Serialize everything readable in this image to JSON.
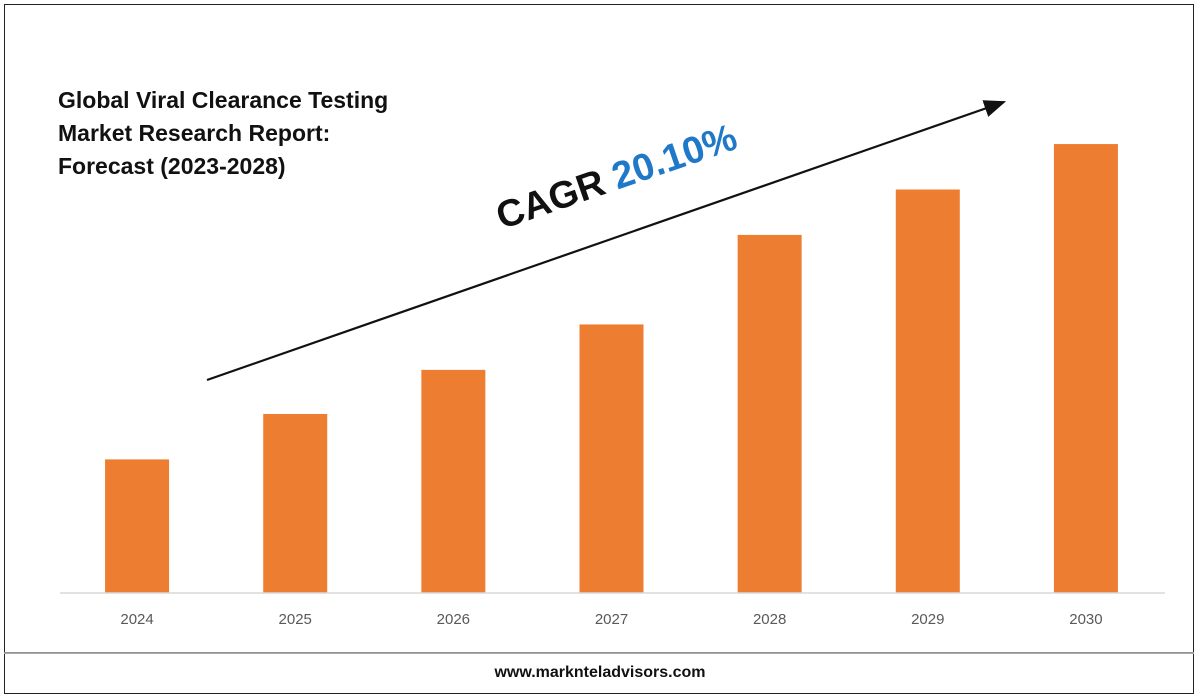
{
  "title_lines": [
    "Global Viral Clearance Testing",
    "Market Research Report:",
    "Forecast (2023-2028)"
  ],
  "cagr": {
    "label": "CAGR",
    "value": "20.10%"
  },
  "footer": "www.marknteladvisors.com",
  "colors": {
    "bar": "#ed7d31",
    "cagr_value": "#1f78c8",
    "axis": "#d9d9d9",
    "tick_text": "#595959"
  },
  "chart_data": {
    "type": "bar",
    "title": "Global Viral Clearance Testing Market Research Report: Forecast (2023-2028)",
    "categories": [
      "2024",
      "2025",
      "2026",
      "2027",
      "2028",
      "2029",
      "2030"
    ],
    "values": [
      1.0,
      1.34,
      1.67,
      2.01,
      2.68,
      3.02,
      3.36
    ],
    "ylim": [
      0,
      3.6
    ],
    "xlabel": "",
    "ylabel": "",
    "grid": false,
    "legend": "none",
    "annotation": "CAGR 20.10%"
  }
}
